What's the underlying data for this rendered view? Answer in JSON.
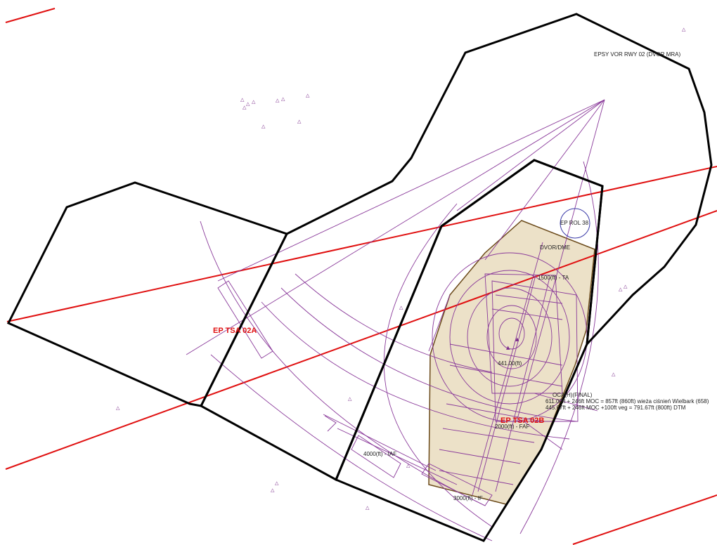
{
  "labels": {
    "zone_a": "EP TSA 02A",
    "zone_b": "EP TSA 02B",
    "rol": "EP ROL 38",
    "dvor_mra": "EPSY VOR RWY 02 (DVOR MRA)",
    "dvor_dme": "DVOR/DME",
    "ta": "1500(ft) - TA",
    "center_alt": "441.00(ft)",
    "oca": "OCA(H)(FINAL)",
    "moc1": "611.00ft + 246ft MOC = 857ft (860ft) wieża ciśnień Wielbark (658)",
    "moc2": "445.67ft + 246ft MOC +100ft veg = 791.67ft (800ft) DTM",
    "faf": "2000(ft) - FAF",
    "iaf": "4000(ft) - IAF",
    "if": "3000(ft) - IF"
  },
  "colors": {
    "sector": "#000000",
    "airway": "#e01010",
    "procedure": "#8a3a9a",
    "area_fill": "#ece1c8",
    "area_stroke": "#6b4a1a",
    "zone_label": "#e01010",
    "rol_circle": "#3a3aa8"
  }
}
